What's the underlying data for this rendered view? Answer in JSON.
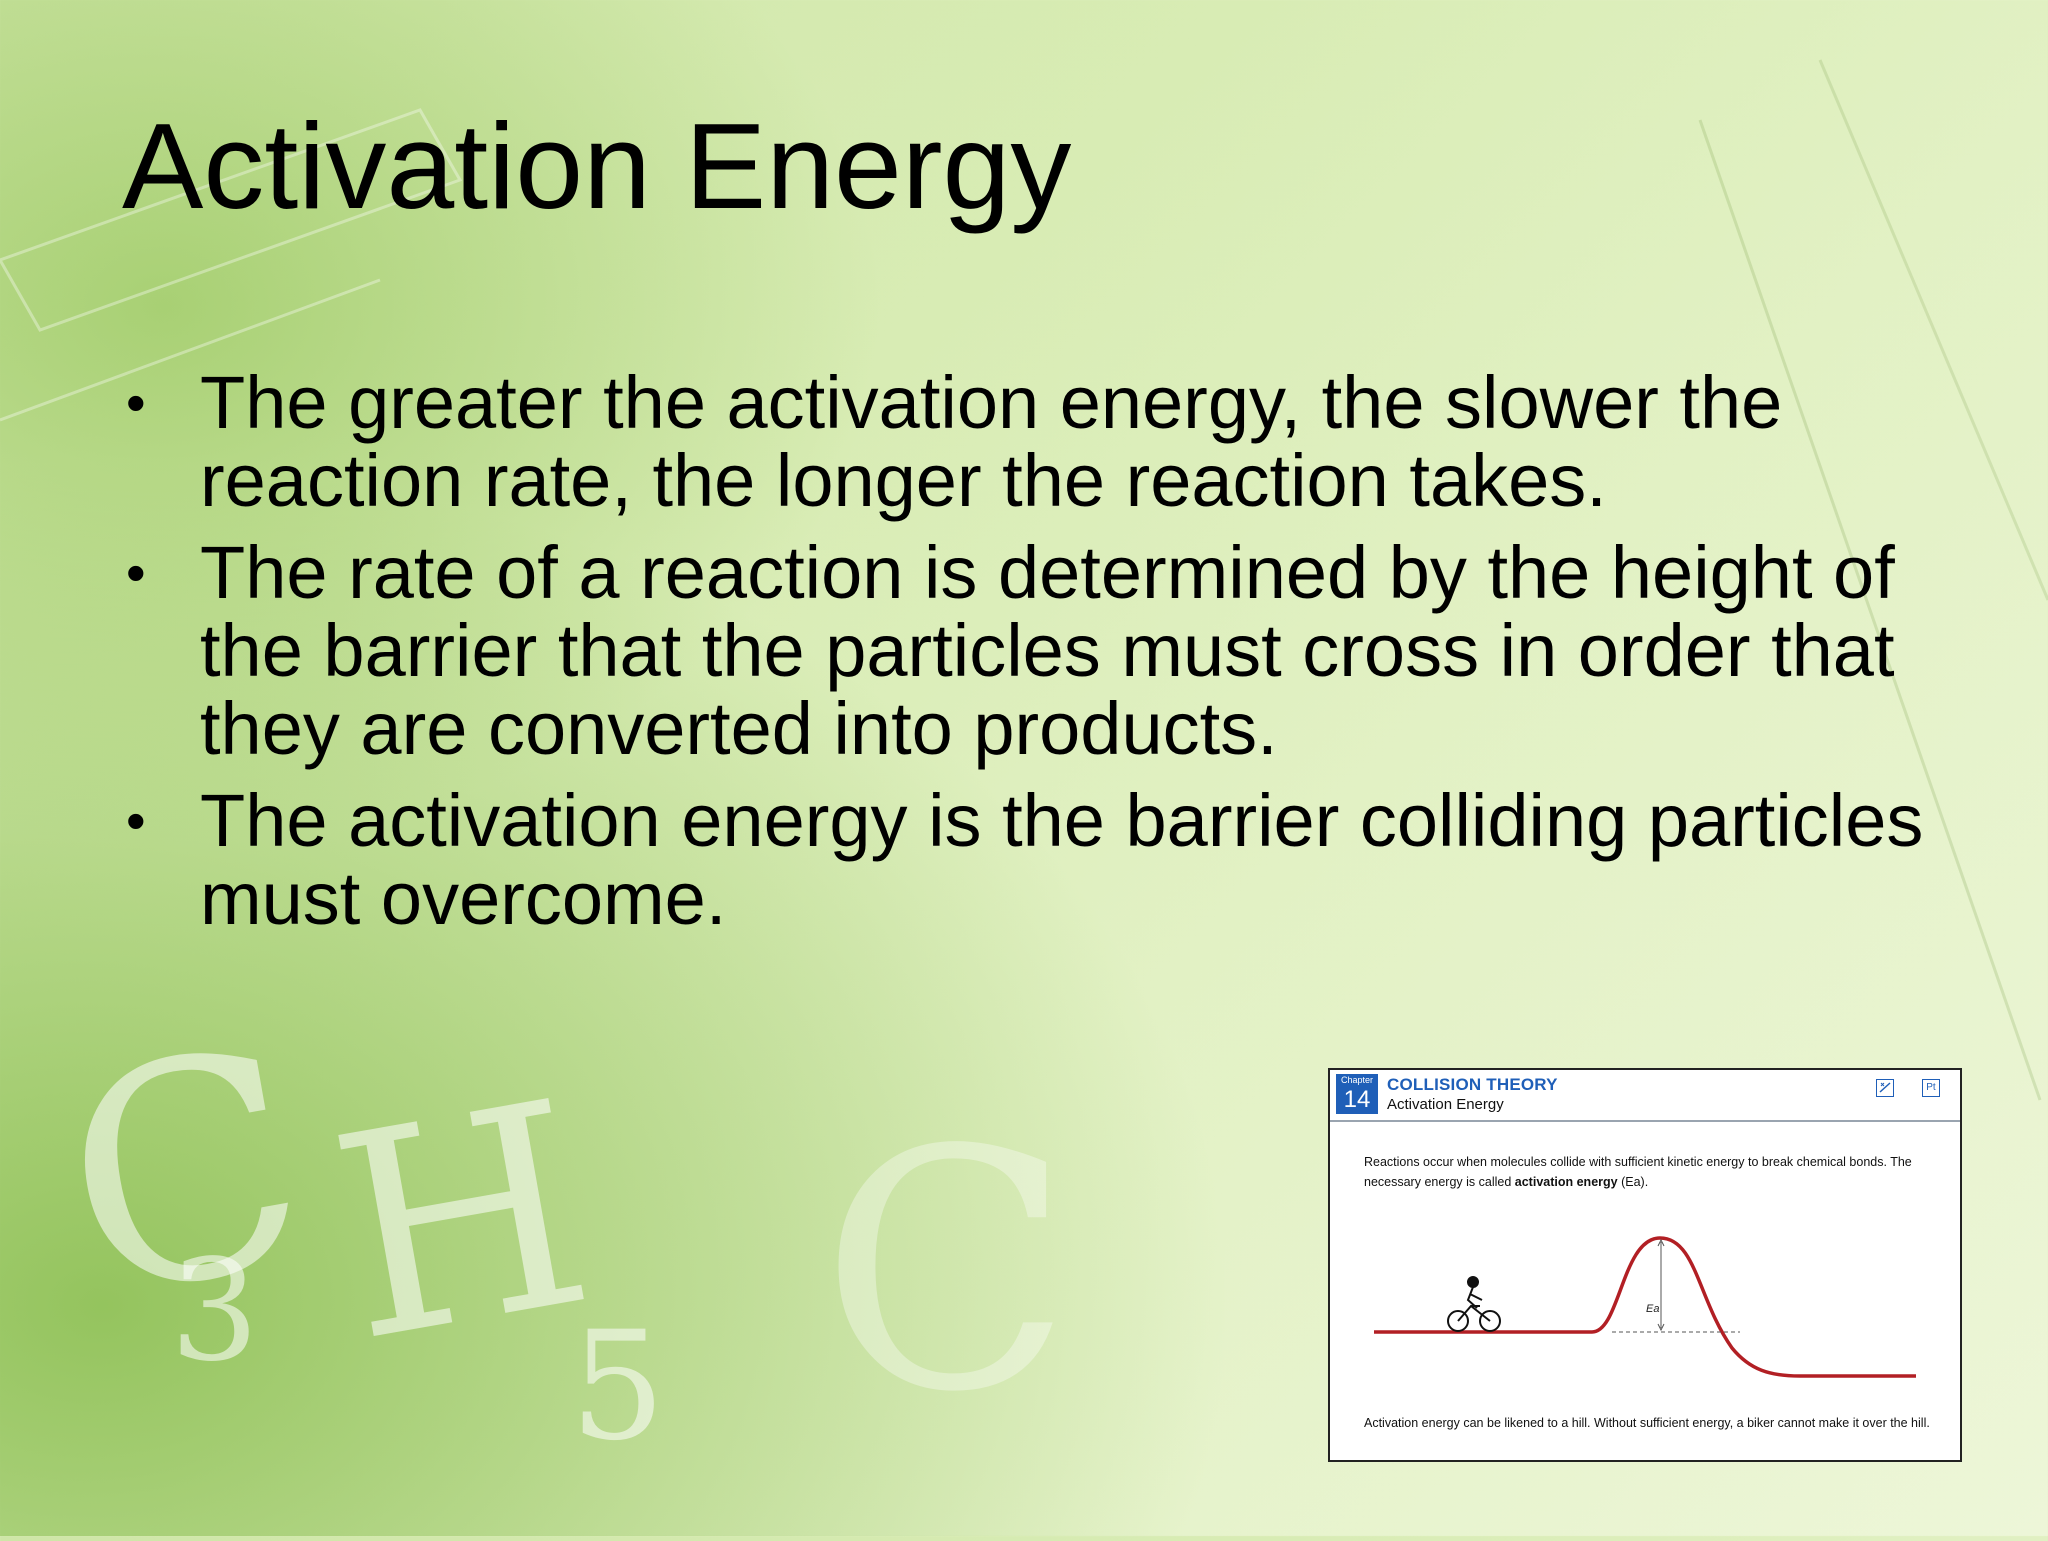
{
  "slide": {
    "title": "Activation Energy",
    "bullet_glyph": "•",
    "bullets": [
      "The greater the activation energy, the slower the reaction rate, the longer the reaction takes.",
      "The rate of a reaction is determined by the height of the barrier that the particles must cross in order that they are converted into products.",
      "The activation energy is the barrier colliding particles must overcome."
    ]
  },
  "background": {
    "letters": [
      "C",
      "H",
      "C",
      "3",
      "5"
    ]
  },
  "card": {
    "chapter_label": "Chapter",
    "chapter_number": "14",
    "section_title": "COLLISION THEORY",
    "section_subtitle": "Activation Energy",
    "icons": [
      "graph-icon",
      "pt-icon"
    ],
    "pt_icon_text": "Pt",
    "text_before": "Reactions occur when molecules collide with sufficient kinetic energy to break chemical bonds. The necessary energy is called ",
    "text_bold": "activation energy",
    "text_symbol": "(Ea).",
    "diagram_label": "Ea",
    "caption": "Activation energy can be likened to a hill. Without sufficient energy, a biker cannot make it over the hill.",
    "colors": {
      "accent": "#1f5fb8",
      "curve": "#b21f24"
    }
  }
}
